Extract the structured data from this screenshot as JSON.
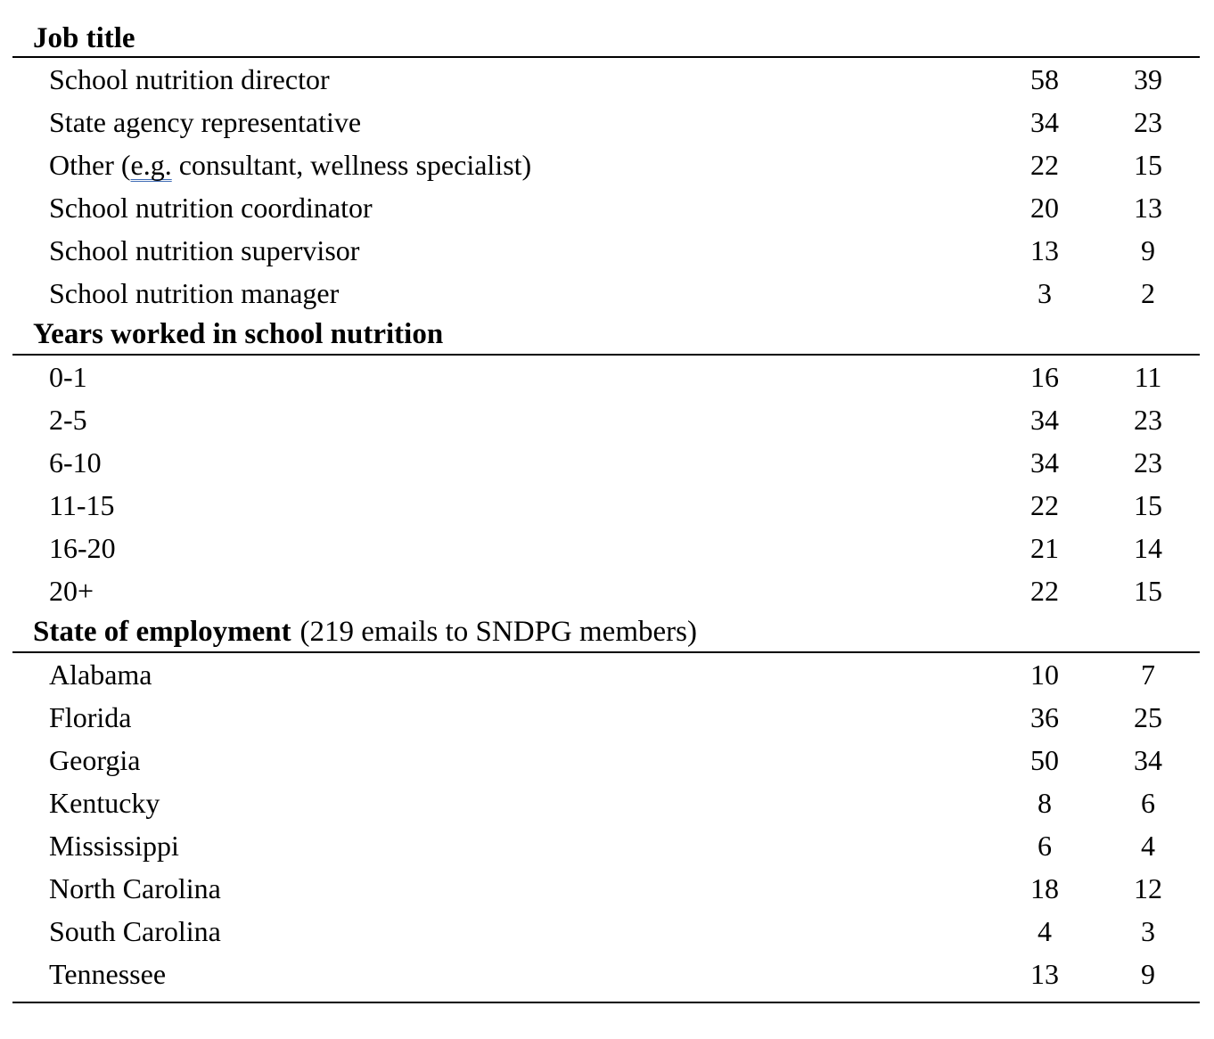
{
  "page": {
    "background_color": "#ffffff",
    "text_color": "#000000",
    "rule_color": "#000000",
    "grammar_underline_color": "#3f6bb5"
  },
  "table": {
    "sections": [
      {
        "title": "Job title",
        "note": "",
        "rows": [
          {
            "label": "School nutrition director",
            "col1": "58",
            "col2": "39"
          },
          {
            "label": "State agency representative",
            "col1": "34",
            "col2": "23"
          },
          {
            "label_pre": "Other (",
            "label_marked": "e.g.",
            "label_post": " consultant, wellness specialist)",
            "col1": "22",
            "col2": "15"
          },
          {
            "label": "School nutrition coordinator",
            "col1": "20",
            "col2": "13"
          },
          {
            "label": "School nutrition supervisor",
            "col1": "13",
            "col2": "9"
          },
          {
            "label": "School nutrition manager",
            "col1": "3",
            "col2": "2"
          }
        ]
      },
      {
        "title": "Years worked in school nutrition",
        "note": "",
        "rows": [
          {
            "label": "0-1",
            "col1": "16",
            "col2": "11"
          },
          {
            "label": "2-5",
            "col1": "34",
            "col2": "23"
          },
          {
            "label": "6-10",
            "col1": "34",
            "col2": "23"
          },
          {
            "label": "11-15",
            "col1": "22",
            "col2": "15"
          },
          {
            "label": "16-20",
            "col1": "21",
            "col2": "14"
          },
          {
            "label": "20+",
            "col1": "22",
            "col2": "15"
          }
        ]
      },
      {
        "title": "State of employment",
        "note": "(219 emails to SNDPG members)",
        "rows": [
          {
            "label": "Alabama",
            "col1": "10",
            "col2": "7"
          },
          {
            "label": "Florida",
            "col1": "36",
            "col2": "25"
          },
          {
            "label": "Georgia",
            "col1": "50",
            "col2": "34"
          },
          {
            "label": "Kentucky",
            "col1": "8",
            "col2": "6"
          },
          {
            "label": "Mississippi",
            "col1": "6",
            "col2": "4"
          },
          {
            "label": "North Carolina",
            "col1": "18",
            "col2": "12"
          },
          {
            "label": "South Carolina",
            "col1": "4",
            "col2": "3"
          },
          {
            "label": "Tennessee",
            "col1": "13",
            "col2": "9"
          }
        ]
      }
    ]
  }
}
